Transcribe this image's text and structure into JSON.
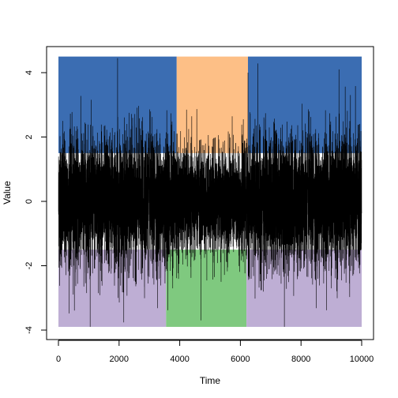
{
  "chart_data": {
    "type": "line",
    "xlabel": "Time",
    "ylabel": "Value",
    "xlim": [
      0,
      10000
    ],
    "ylim": [
      -4,
      4.5
    ],
    "x_ticks": [
      0,
      2000,
      4000,
      6000,
      8000,
      10000
    ],
    "y_ticks": [
      -4,
      -2,
      0,
      2,
      4
    ],
    "grid": false,
    "legend": "none",
    "series": [
      {
        "n_points": 10000,
        "color": "#000000",
        "sd_base": 1.0,
        "sd_middle": 0.8,
        "middle_range": [
          3900,
          6200
        ],
        "peaks": [
          {
            "x": 1950,
            "y": 4.45
          },
          {
            "x": 6250,
            "y": 4.0
          },
          {
            "x": 9250,
            "y": 4.1
          },
          {
            "x": 4700,
            "y": -3.7
          },
          {
            "x": 7450,
            "y": -3.9
          }
        ]
      }
    ],
    "bands": [
      {
        "x0": 0,
        "x1": 3900,
        "y0": 1.5,
        "y1": 4.5,
        "color": "#3B6DB2"
      },
      {
        "x0": 3900,
        "x1": 6250,
        "y0": 1.5,
        "y1": 4.5,
        "color": "#FDBF86"
      },
      {
        "x0": 6250,
        "x1": 10000,
        "y0": 1.5,
        "y1": 4.5,
        "color": "#3B6DB2"
      },
      {
        "x0": 0,
        "x1": 3550,
        "y0": -3.9,
        "y1": -1.5,
        "color": "#BEAED4"
      },
      {
        "x0": 3550,
        "x1": 6200,
        "y0": -3.9,
        "y1": -1.5,
        "color": "#7FC97F"
      },
      {
        "x0": 6200,
        "x1": 10000,
        "y0": -3.9,
        "y1": -1.5,
        "color": "#BEAED4"
      }
    ]
  }
}
